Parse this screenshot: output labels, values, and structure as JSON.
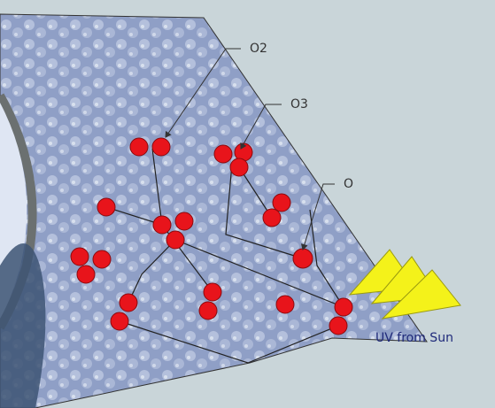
{
  "annotations": {
    "o2": "O2",
    "o3": "O3",
    "o": "O",
    "uv": "UV from Sun"
  }
}
